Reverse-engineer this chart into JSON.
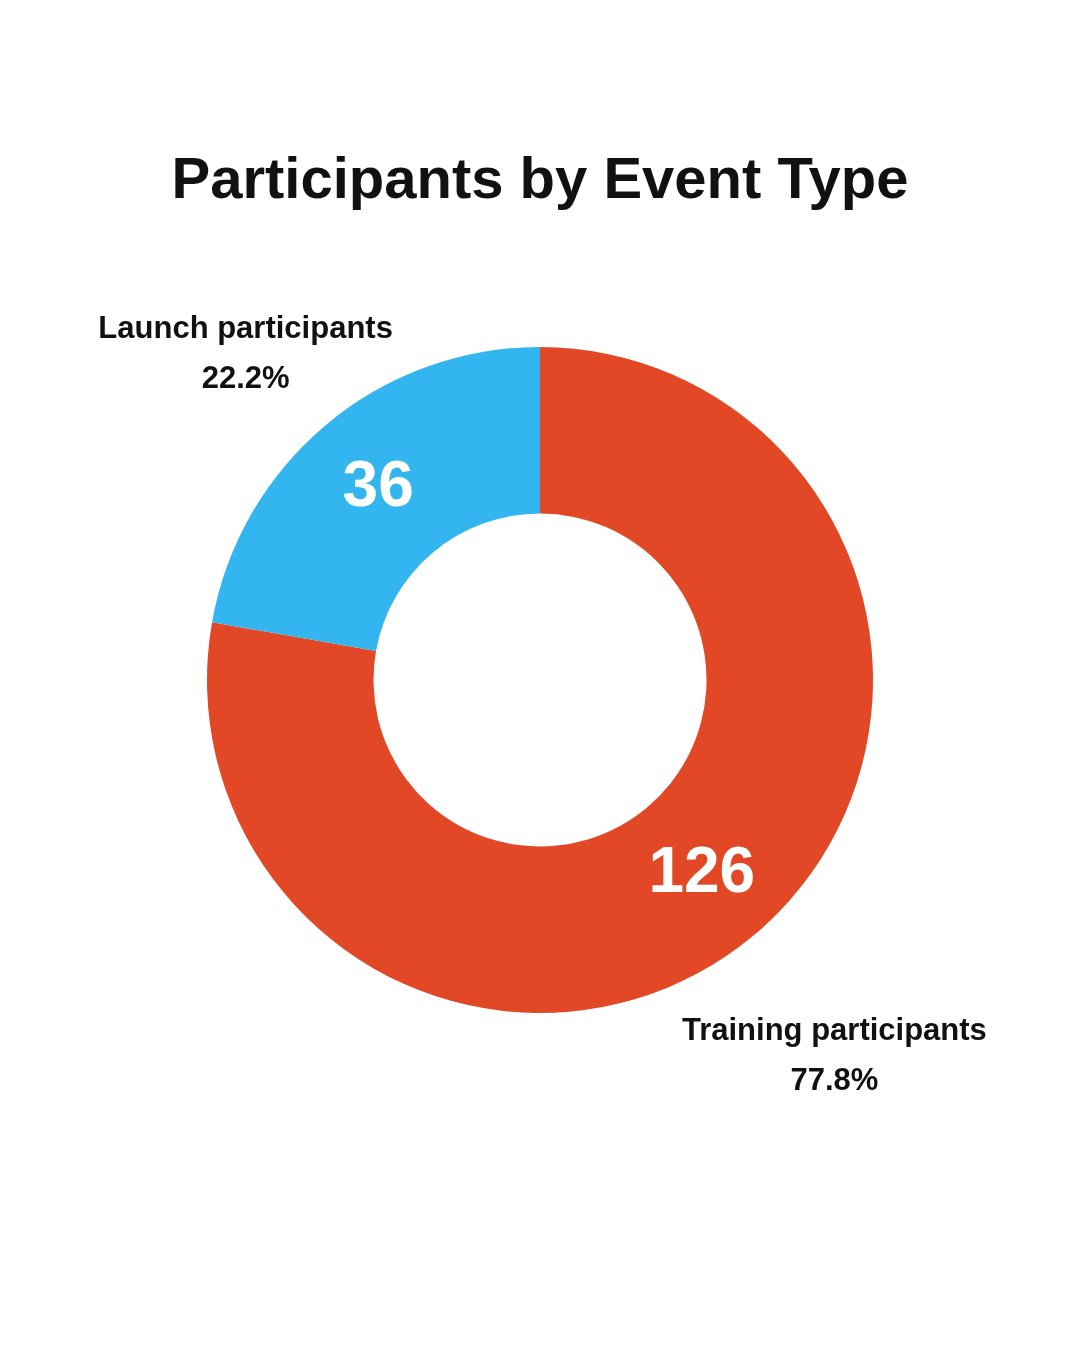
{
  "chart_data": {
    "type": "donut",
    "title": "Participants by Event Type",
    "categories": [
      "Training participants",
      "Launch participants"
    ],
    "values": [
      126,
      36
    ],
    "colors": [
      "#e34826",
      "#33b5ef"
    ],
    "annotations": [
      "77.8%",
      "22.2%"
    ],
    "data_labels": true
  }
}
